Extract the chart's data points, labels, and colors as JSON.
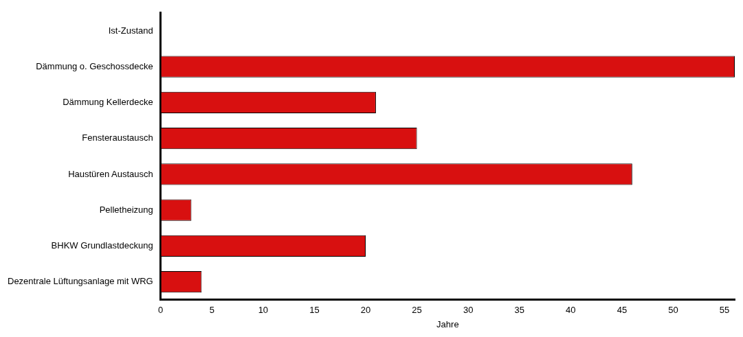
{
  "chart_data": {
    "type": "bar",
    "orientation": "horizontal",
    "xlabel": "Jahre",
    "categories": [
      "Ist-Zustand",
      "Dämmung o. Geschossdecke",
      "Dämmung Kellerdecke",
      "Fensteraustausch",
      "Haustüren Austausch",
      "Pelletheizung",
      "BHKW Grundlastdeckung",
      "Dezentrale Lüftungsanlage mit WRG"
    ],
    "values": [
      0,
      56,
      21,
      25,
      46,
      3,
      20,
      4
    ],
    "color": "#d81010",
    "xlim": [
      0,
      56
    ],
    "xticks": [
      0,
      5,
      10,
      15,
      20,
      25,
      30,
      35,
      40,
      45,
      50,
      55
    ],
    "grid": false,
    "legend": false
  }
}
